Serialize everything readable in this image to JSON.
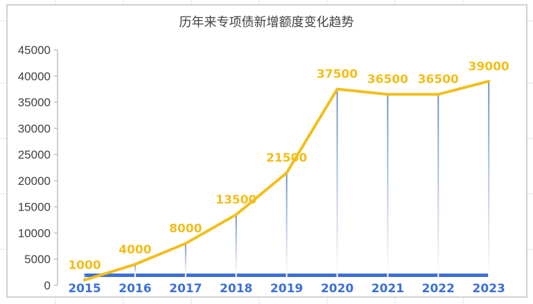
{
  "chart_data": {
    "type": "line",
    "title": "历年来专项债新增额度变化趋势",
    "categories": [
      "2015",
      "2016",
      "2017",
      "2018",
      "2019",
      "2020",
      "2021",
      "2022",
      "2023"
    ],
    "series": [
      {
        "values": [
          1000,
          4000,
          8000,
          13500,
          21500,
          37500,
          36500,
          36500,
          39000
        ]
      }
    ],
    "data_labels": [
      "1000",
      "4000",
      "8000",
      "13500",
      "21500",
      "37500",
      "36500",
      "36500",
      "39000"
    ],
    "yticks": [
      "0",
      "5000",
      "10000",
      "15000",
      "20000",
      "25000",
      "30000",
      "35000",
      "40000",
      "45000"
    ],
    "ylim": [
      0,
      45000
    ],
    "grid": false,
    "legend": "none",
    "colors": {
      "line": "#F2BE1A",
      "label": "#F2BE1A",
      "category_axis": "#3B6FD8",
      "drop_lines": "#6E8FC0"
    }
  }
}
